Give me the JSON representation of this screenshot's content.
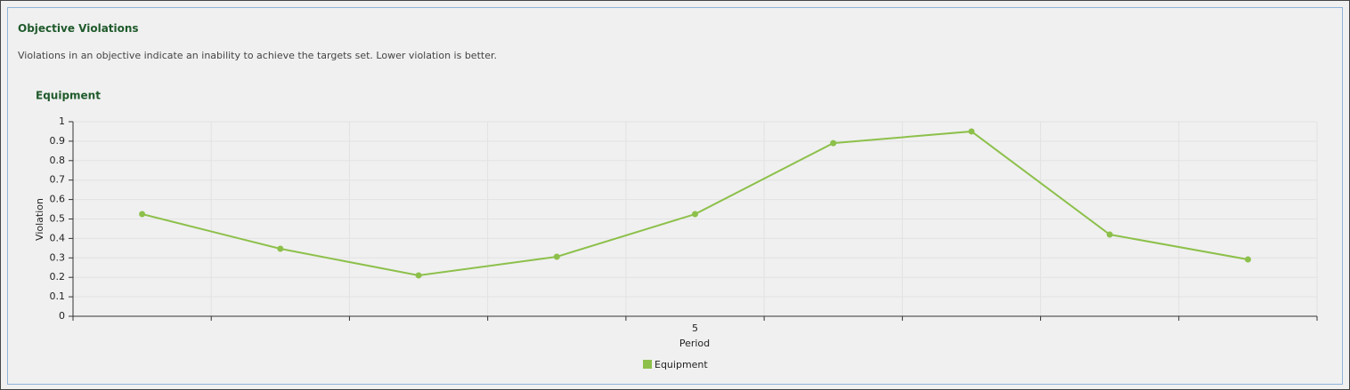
{
  "header": {
    "title": "Objective Violations",
    "description": "Violations in an objective indicate an inability to achieve the targets set. Lower violation is better."
  },
  "chart_data": {
    "type": "line",
    "title": "Equipment",
    "categories": [
      null,
      null,
      null,
      null,
      "5",
      null,
      null,
      null,
      null
    ],
    "series": [
      {
        "name": "Equipment",
        "color": "#8dc04b",
        "values": [
          0.525,
          0.347,
          0.21,
          0.306,
          0.525,
          0.89,
          0.95,
          0.42,
          0.292
        ]
      }
    ],
    "ylim": [
      0,
      1
    ],
    "yticks": [
      0,
      0.1,
      0.2,
      0.3,
      0.4,
      0.5,
      0.6,
      0.7,
      0.8,
      0.9,
      1
    ],
    "x_label": "Period",
    "y_label": "Violation",
    "grid": true,
    "legend": "bottom"
  }
}
